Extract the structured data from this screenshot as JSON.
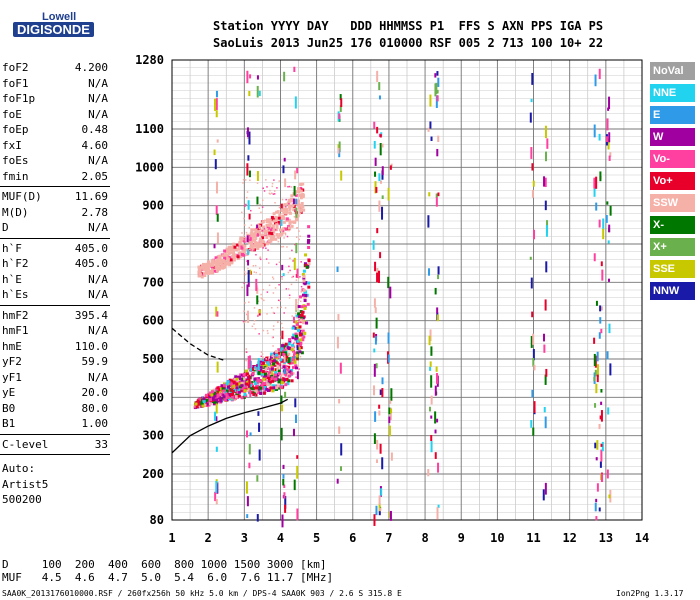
{
  "logo": {
    "line1": "Lowell",
    "line2": "DIGISONDE"
  },
  "header": {
    "labels": "Station YYYY DAY   DDD HHMMSS P1  FFS S AXN PPS IGA PS",
    "values": "SaoLuis 2013 Jun25 176 010000 RSF 005 2 713 100 10+ 22"
  },
  "params_group1": [
    {
      "k": "foF2",
      "v": "4.200"
    },
    {
      "k": "foF1",
      "v": "N/A"
    },
    {
      "k": "foF1p",
      "v": "N/A"
    },
    {
      "k": "foE",
      "v": "N/A"
    },
    {
      "k": "foEp",
      "v": "0.48"
    },
    {
      "k": "fxI",
      "v": "4.60"
    },
    {
      "k": "foEs",
      "v": "N/A"
    },
    {
      "k": "fmin",
      "v": "2.05"
    }
  ],
  "params_group2": [
    {
      "k": "MUF(D)",
      "v": "11.69"
    },
    {
      "k": "M(D)",
      "v": "2.78"
    },
    {
      "k": "D",
      "v": "N/A"
    }
  ],
  "params_group3": [
    {
      "k": "h`F",
      "v": "405.0"
    },
    {
      "k": "h`F2",
      "v": "405.0"
    },
    {
      "k": "h`E",
      "v": "N/A"
    },
    {
      "k": "h`Es",
      "v": "N/A"
    }
  ],
  "params_group4": [
    {
      "k": "hmF2",
      "v": "395.4"
    },
    {
      "k": "hmF1",
      "v": "N/A"
    },
    {
      "k": "hmE",
      "v": "110.0"
    },
    {
      "k": "yF2",
      "v": "59.9"
    },
    {
      "k": "yF1",
      "v": "N/A"
    },
    {
      "k": "yE",
      "v": "20.0"
    },
    {
      "k": "B0",
      "v": "80.0"
    },
    {
      "k": "B1",
      "v": "1.00"
    }
  ],
  "params_group5": [
    {
      "k": "C-level",
      "v": "33"
    }
  ],
  "autoscaling": {
    "label": "Auto:",
    "artist": "Artist5",
    "code": "500200"
  },
  "legend": [
    {
      "name": "NoVal",
      "color": "#a0a0a0"
    },
    {
      "name": "NNE",
      "color": "#22d3f0"
    },
    {
      "name": "E",
      "color": "#2f9be8"
    },
    {
      "name": "W",
      "color": "#a000a0"
    },
    {
      "name": "Vo-",
      "color": "#ff40a0"
    },
    {
      "name": "Vo+",
      "color": "#e8002a"
    },
    {
      "name": "SSW",
      "color": "#f5b0a8"
    },
    {
      "name": "X-",
      "color": "#007800"
    },
    {
      "name": "X+",
      "color": "#6ab04c"
    },
    {
      "name": "SSE",
      "color": "#c8c800"
    },
    {
      "name": "NNW",
      "color": "#1a1aa8"
    }
  ],
  "footer": {
    "d_row": "D     100  200  400  600  800 1000 1500 3000 [km]",
    "muf_row": "MUF   4.5  4.6  4.7  5.0  5.4  6.0  7.6 11.7 [MHz]",
    "info": "SAA0K_2013176010000.RSF / 260fx256h 50 kHz 5.0 km / DPS-4 SAA0K 903 / 2.6 S 315.8 E",
    "version": "Ion2Png 1.3.17"
  },
  "chart_data": {
    "type": "scatter",
    "x_range": [
      1,
      14
    ],
    "y_range": [
      80,
      1280
    ],
    "x_ticks": [
      1,
      2,
      3,
      4,
      5,
      6,
      7,
      8,
      9,
      10,
      11,
      12,
      13,
      14
    ],
    "y_ticks": [
      80,
      200,
      300,
      400,
      500,
      600,
      700,
      800,
      900,
      1000,
      1100,
      1280
    ],
    "grid": true,
    "legend_position": "right",
    "traces": {
      "o_trace_low": [
        [
          1.6,
          380
        ],
        [
          2,
          390
        ],
        [
          2.5,
          405
        ],
        [
          3,
          418
        ],
        [
          3.5,
          432
        ],
        [
          4,
          450
        ],
        [
          4.3,
          470
        ],
        [
          4.5,
          500
        ],
        [
          4.6,
          540
        ],
        [
          4.7,
          600
        ],
        [
          4.75,
          650
        ]
      ],
      "second_hop": [
        [
          1.7,
          730
        ],
        [
          2.2,
          750
        ],
        [
          2.8,
          790
        ],
        [
          3.3,
          820
        ],
        [
          3.8,
          850
        ],
        [
          4.2,
          880
        ],
        [
          4.6,
          930
        ]
      ],
      "profile_solid": [
        [
          1,
          255
        ],
        [
          1.5,
          300
        ],
        [
          2,
          325
        ],
        [
          2.5,
          345
        ],
        [
          3,
          360
        ],
        [
          3.5,
          372
        ],
        [
          4,
          385
        ],
        [
          4.2,
          395
        ]
      ],
      "profile_dashed": [
        [
          1,
          580
        ],
        [
          1.5,
          540
        ],
        [
          2,
          510
        ],
        [
          2.5,
          495
        ]
      ]
    }
  }
}
